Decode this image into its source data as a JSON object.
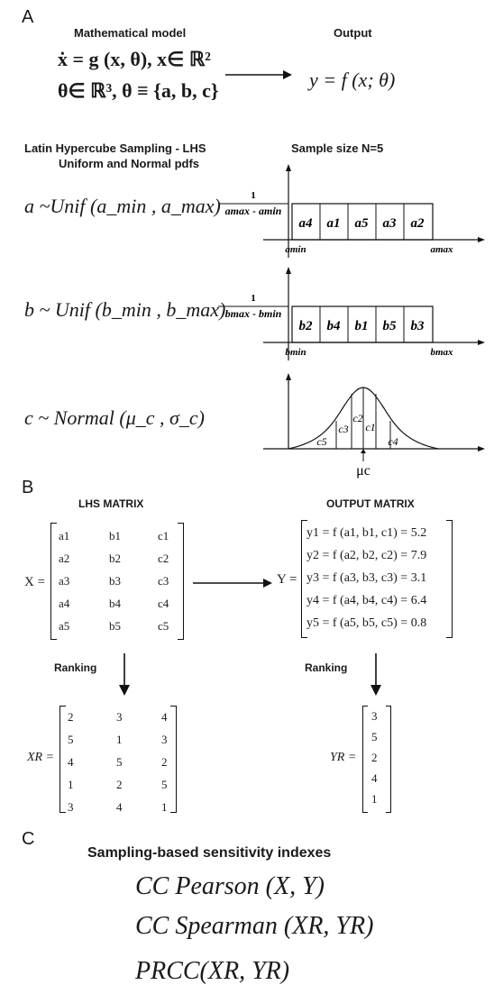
{
  "panel_a": {
    "letter": "A",
    "model_title": "Mathematical model",
    "output_title": "Output",
    "model_eq1": "ẋ = g (x, θ), x∈ ℝ²",
    "model_eq2": "θ∈ ℝ³, θ ≡ {a, b, c}",
    "output_eq": "y = f (x; θ)"
  },
  "lhs": {
    "title": "Latin Hypercube Sampling - LHS",
    "subtitle": "Uniform and Normal pdfs",
    "sample_size": "Sample size N=5",
    "a_dist": "a ~Unif (a_min , a_max)",
    "b_dist": "b ~ Unif (b_min , b_max)",
    "c_dist": "c ~ Normal (μ_c , σ_c)",
    "a_numerator": "1",
    "a_denominator": "amax - amin",
    "a_bins": [
      "a4",
      "a1",
      "a5",
      "a3",
      "a2"
    ],
    "a_min": "amin",
    "a_max": "amax",
    "b_numerator": "1",
    "b_denominator": "bmax - bmin",
    "b_bins": [
      "b2",
      "b4",
      "b1",
      "b5",
      "b3"
    ],
    "b_min": "bmin",
    "b_max": "bmax",
    "c_bins": [
      "c5",
      "c3",
      "c2",
      "c1",
      "c4"
    ],
    "c_mu": "μc"
  },
  "panel_b": {
    "letter": "B",
    "lhs_matrix_title": "LHS MATRIX",
    "output_matrix_title": "OUTPUT MATRIX",
    "x_label": "X =",
    "y_label": "Y =",
    "lhs_matrix": [
      [
        "a1",
        "b1",
        "c1"
      ],
      [
        "a2",
        "b2",
        "c2"
      ],
      [
        "a3",
        "b3",
        "c3"
      ],
      [
        "a4",
        "b4",
        "c4"
      ],
      [
        "a5",
        "b5",
        "c5"
      ]
    ],
    "output_rows": [
      "y1 = f (a1, b1, c1) = 5.2",
      "y2 = f (a2, b2, c2) = 7.9",
      "y3 = f (a3, b3, c3) = 3.1",
      "y4 = f (a4, b4, c4) = 6.4",
      "y5 = f (a5, b5, c5) = 0.8"
    ],
    "ranking_label": "Ranking",
    "xr_label": "XR =",
    "yr_label": "YR =",
    "xr_matrix": [
      [
        "2",
        "3",
        "4"
      ],
      [
        "5",
        "1",
        "3"
      ],
      [
        "4",
        "5",
        "2"
      ],
      [
        "1",
        "2",
        "5"
      ],
      [
        "3",
        "4",
        "1"
      ]
    ],
    "yr_values": [
      "3",
      "5",
      "2",
      "4",
      "1"
    ]
  },
  "panel_c": {
    "letter": "C",
    "title": "Sampling-based sensitivity indexes",
    "pearson": "CC Pearson (X, Y)",
    "spearman": "CC Spearman (XR, YR)",
    "prcc": "PRCC(XR, YR)"
  }
}
